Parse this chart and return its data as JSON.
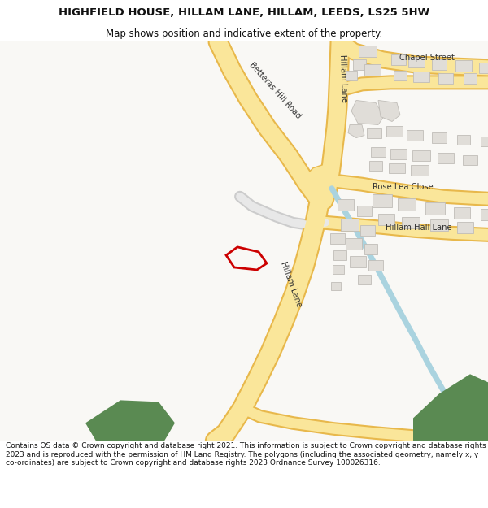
{
  "title_line1": "HIGHFIELD HOUSE, HILLAM LANE, HILLAM, LEEDS, LS25 5HW",
  "title_line2": "Map shows position and indicative extent of the property.",
  "footer_text": "Contains OS data © Crown copyright and database right 2021. This information is subject to Crown copyright and database rights 2023 and is reproduced with the permission of HM Land Registry. The polygons (including the associated geometry, namely x, y co-ordinates) are subject to Crown copyright and database rights 2023 Ordnance Survey 100026316.",
  "map_bg": "#f2f0eb",
  "road_fill": "#fae69a",
  "road_edge": "#e8b84b",
  "road_fill_minor": "#ffffff",
  "road_edge_minor": "#cccccc",
  "building_fill": "#e0ddd8",
  "building_edge": "#c0bdb8",
  "water_color": "#aad3df",
  "green_color": "#5a8a52",
  "highlight_color": "#cc0000",
  "title_fontsize": 9.5,
  "subtitle_fontsize": 8.5,
  "footer_fontsize": 6.5,
  "label_fontsize": 7.2
}
